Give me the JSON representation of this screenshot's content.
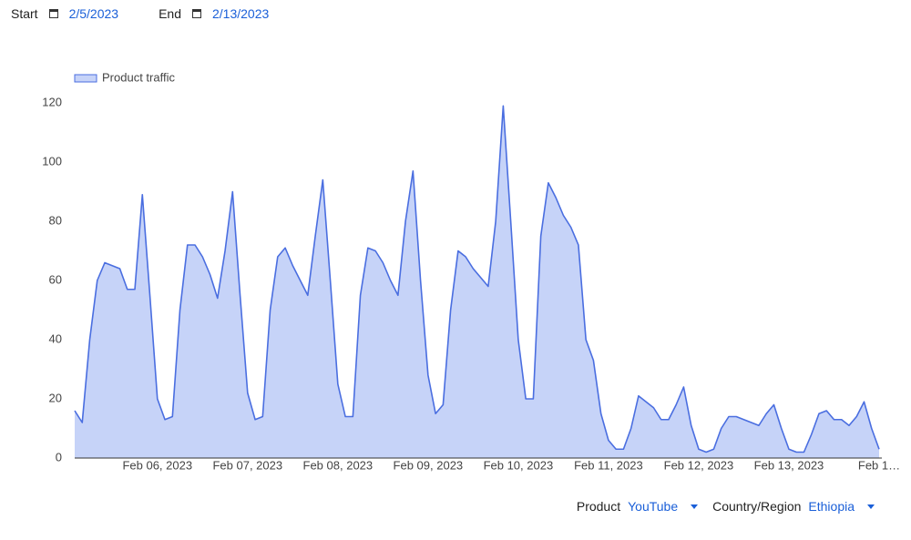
{
  "controls": {
    "start_label": "Start",
    "start_date": "2/5/2023",
    "end_label": "End",
    "end_date": "2/13/2023",
    "product_label": "Product",
    "product_value": "YouTube",
    "country_label": "Country/Region",
    "country_value": "Ethiopia"
  },
  "chart_data": {
    "type": "area",
    "categories": [
      null,
      null,
      null,
      null,
      null,
      null,
      null,
      null,
      null,
      null,
      null,
      "Feb 06, 2023",
      null,
      null,
      null,
      null,
      null,
      null,
      null,
      null,
      null,
      null,
      null,
      "Feb 07, 2023",
      null,
      null,
      null,
      null,
      null,
      null,
      null,
      null,
      null,
      null,
      null,
      "Feb 08, 2023",
      null,
      null,
      null,
      null,
      null,
      null,
      null,
      null,
      null,
      null,
      null,
      "Feb 09, 2023",
      null,
      null,
      null,
      null,
      null,
      null,
      null,
      null,
      null,
      null,
      null,
      "Feb 10, 2023",
      null,
      null,
      null,
      null,
      null,
      null,
      null,
      null,
      null,
      null,
      null,
      "Feb 11, 2023",
      null,
      null,
      null,
      null,
      null,
      null,
      null,
      null,
      null,
      null,
      null,
      "Feb 12, 2023",
      null,
      null,
      null,
      null,
      null,
      null,
      null,
      null,
      null,
      null,
      null,
      "Feb 13, 2023",
      null,
      null,
      null,
      null,
      null,
      null,
      null,
      null,
      null,
      null,
      null,
      "Feb 1…"
    ],
    "series": [
      {
        "name": "Product traffic",
        "color": "#4a6ee0",
        "fill": "#c6d3f8",
        "values": [
          16,
          12,
          40,
          60,
          66,
          65,
          64,
          57,
          57,
          89,
          55,
          20,
          13,
          14,
          50,
          72,
          72,
          68,
          62,
          54,
          70,
          90,
          55,
          22,
          13,
          14,
          50,
          68,
          71,
          65,
          60,
          55,
          75,
          94,
          60,
          25,
          14,
          14,
          55,
          71,
          70,
          66,
          60,
          55,
          80,
          97,
          60,
          28,
          15,
          18,
          50,
          70,
          68,
          64,
          61,
          58,
          80,
          119,
          80,
          40,
          20,
          20,
          75,
          93,
          88,
          82,
          78,
          72,
          40,
          33,
          15,
          6,
          3,
          3,
          10,
          21,
          19,
          17,
          13,
          13,
          18,
          24,
          11,
          3,
          2,
          3,
          10,
          14,
          14,
          13,
          12,
          11,
          15,
          18,
          10,
          3,
          2,
          2,
          8,
          15,
          16,
          13,
          13,
          11,
          14,
          19,
          10,
          3
        ]
      }
    ],
    "ylim": [
      0,
      120
    ],
    "yticks": [
      0,
      20,
      40,
      60,
      80,
      100,
      120
    ],
    "grid": false,
    "legend": "top-left"
  }
}
